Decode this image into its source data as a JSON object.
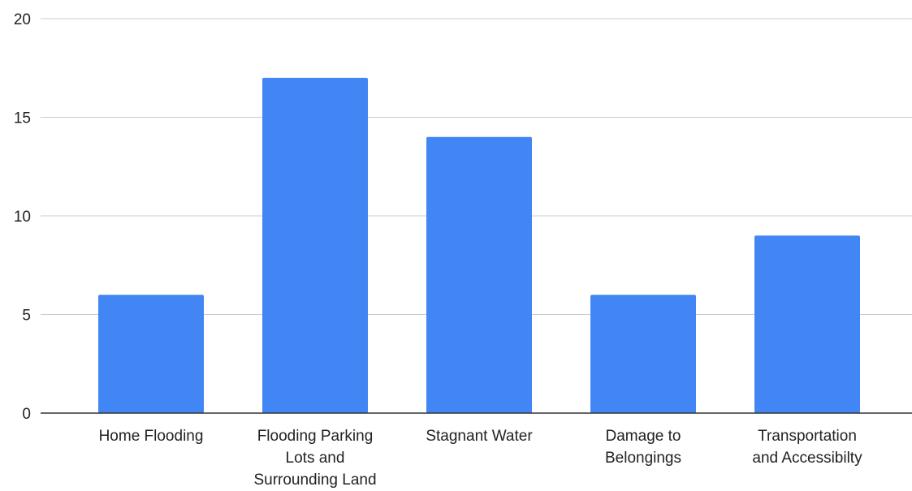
{
  "chart_data": {
    "type": "bar",
    "categories": [
      "Home Flooding",
      "Flooding Parking Lots and Surrounding Land",
      "Stagnant Water",
      "Damage to Belongings",
      "Transportation and Accessibilty"
    ],
    "category_label_lines": [
      [
        "Home Flooding"
      ],
      [
        "Flooding Parking",
        "Lots and",
        "Surrounding Land"
      ],
      [
        "Stagnant Water"
      ],
      [
        "Damage to",
        "Belongings"
      ],
      [
        "Transportation",
        "and Accessibilty"
      ]
    ],
    "values": [
      6,
      17,
      14,
      6,
      9
    ],
    "ylim": [
      0,
      20
    ],
    "yticks": [
      "0",
      "5",
      "10",
      "15",
      "20"
    ],
    "grid": true,
    "bar_color": "#4285f4",
    "grid_color": "#cccccc",
    "title": "",
    "xlabel": "",
    "ylabel": ""
  }
}
